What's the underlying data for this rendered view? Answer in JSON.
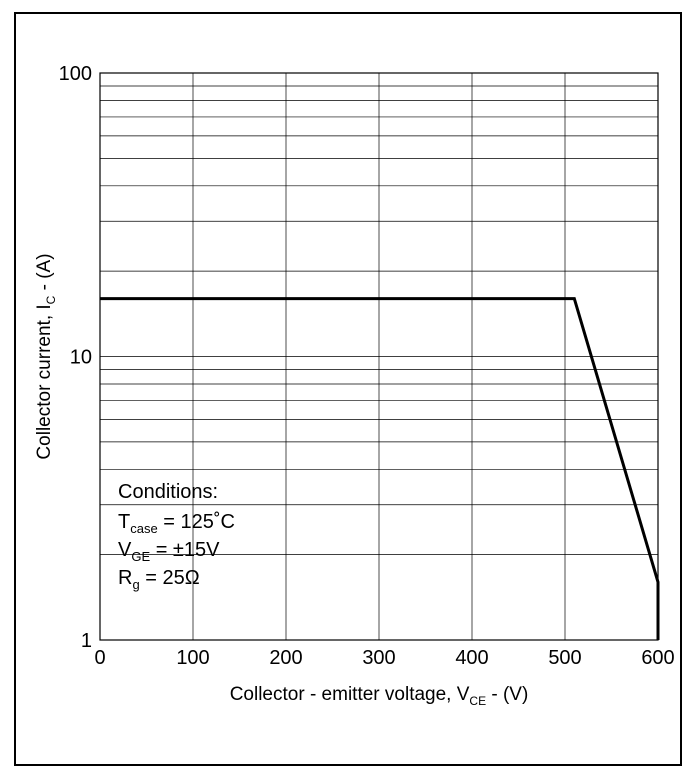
{
  "chart_data": {
    "type": "line",
    "title": "",
    "xlabel": "Collector - emitter voltage, V",
    "xlabel_sub": "CE",
    "xlabel_suffix": " - (V)",
    "ylabel": "Collector current, I",
    "ylabel_sub": "C",
    "ylabel_suffix": " - (A)",
    "x_scale": "linear",
    "y_scale": "log",
    "xlim": [
      0,
      600
    ],
    "ylim": [
      1,
      100
    ],
    "x_ticks": [
      "0",
      "100",
      "200",
      "300",
      "400",
      "500",
      "600"
    ],
    "y_ticks": [
      "1",
      "10",
      "100"
    ],
    "grid": true,
    "series": [
      {
        "x": [
          0,
          510,
          600,
          600
        ],
        "y": [
          16,
          16,
          1.6,
          1
        ]
      }
    ],
    "annotation": {
      "heading": "Conditions:",
      "lines": [
        {
          "main": "T",
          "sub": "case",
          "rest": " = 125˚C"
        },
        {
          "main": "V",
          "sub": "GE",
          "rest": " = ±15V"
        },
        {
          "main": "R",
          "sub": "g",
          "rest": " = 25Ω"
        }
      ]
    },
    "colors": {
      "line": "#000000",
      "grid": "#000000",
      "background": "#ffffff"
    }
  }
}
